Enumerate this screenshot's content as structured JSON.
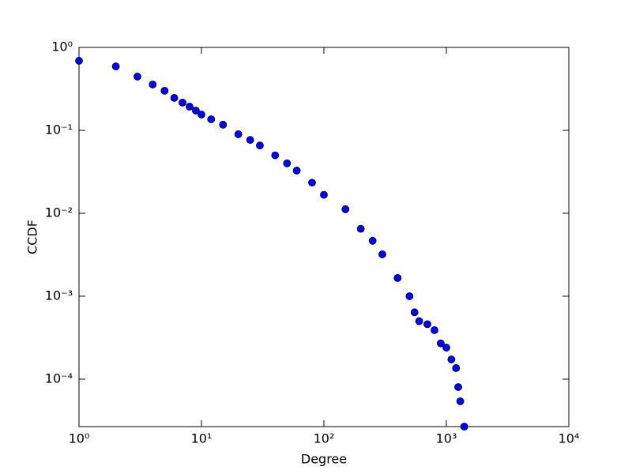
{
  "chart_data": {
    "type": "scatter",
    "xlabel": "Degree",
    "ylabel": "CCDF",
    "xscale": "log",
    "yscale": "log",
    "xlim": [
      1,
      10000
    ],
    "ylim": [
      2.68e-05,
      1
    ],
    "xticks": [
      {
        "value": 1,
        "label": "10⁰"
      },
      {
        "value": 10,
        "label": "10¹"
      },
      {
        "value": 100,
        "label": "10²"
      },
      {
        "value": 1000,
        "label": "10³"
      },
      {
        "value": 10000,
        "label": "10⁴"
      }
    ],
    "yticks": [
      {
        "value": 0.0001,
        "label": "10⁻⁴"
      },
      {
        "value": 0.001,
        "label": "10⁻³"
      },
      {
        "value": 0.01,
        "label": "10⁻²"
      },
      {
        "value": 0.1,
        "label": "10⁻¹"
      },
      {
        "value": 1,
        "label": "10⁰"
      }
    ],
    "series": [
      {
        "color": "#0000ff",
        "x": [
          1,
          2,
          3,
          4,
          5,
          6,
          7,
          8,
          9,
          10,
          12,
          15,
          20,
          25,
          30,
          40,
          50,
          60,
          80,
          100,
          150,
          200,
          250,
          300,
          400,
          500,
          550,
          600,
          700,
          800,
          900,
          1000,
          1100,
          1200,
          1250,
          1300,
          1400
        ],
        "values": [
          0.69,
          0.59,
          0.445,
          0.357,
          0.3,
          0.246,
          0.216,
          0.193,
          0.173,
          0.155,
          0.136,
          0.117,
          0.0897,
          0.0766,
          0.0657,
          0.05,
          0.04,
          0.0327,
          0.0234,
          0.0167,
          0.0112,
          0.0065,
          0.00466,
          0.0032,
          0.00166,
          0.001,
          0.00064,
          0.0005,
          0.00046,
          0.00039,
          0.00027,
          0.00024,
          0.000173,
          0.000136,
          8.03e-05,
          5.41e-05,
          2.68e-05
        ]
      }
    ]
  }
}
